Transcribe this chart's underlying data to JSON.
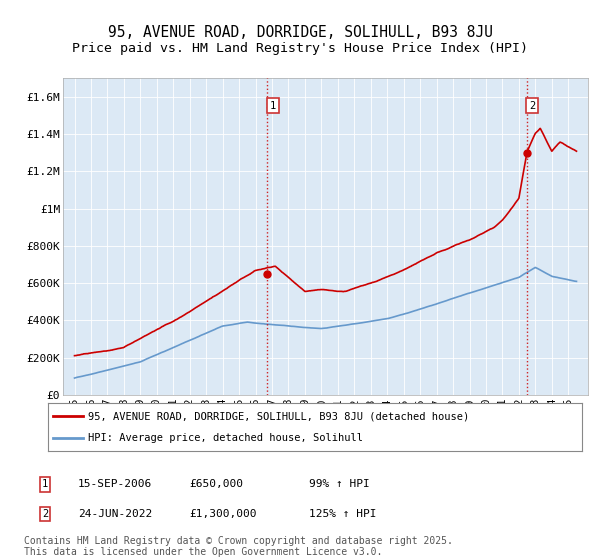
{
  "title": "95, AVENUE ROAD, DORRIDGE, SOLIHULL, B93 8JU",
  "subtitle": "Price paid vs. HM Land Registry's House Price Index (HPI)",
  "ylim": [
    0,
    1700000
  ],
  "yticks": [
    0,
    200000,
    400000,
    600000,
    800000,
    1000000,
    1200000,
    1400000,
    1600000
  ],
  "ytick_labels": [
    "£0",
    "£200K",
    "£400K",
    "£600K",
    "£800K",
    "£1M",
    "£1.2M",
    "£1.4M",
    "£1.6M"
  ],
  "sale1_date": "15-SEP-2006",
  "sale1_price": 650000,
  "sale1_label": "1",
  "sale1_x": 2006.71,
  "sale2_date": "24-JUN-2022",
  "sale2_price": 1300000,
  "sale2_label": "2",
  "sale2_x": 2022.47,
  "legend_line1": "95, AVENUE ROAD, DORRIDGE, SOLIHULL, B93 8JU (detached house)",
  "legend_line2": "HPI: Average price, detached house, Solihull",
  "footer": "Contains HM Land Registry data © Crown copyright and database right 2025.\nThis data is licensed under the Open Government Licence v3.0.",
  "red_color": "#cc0000",
  "blue_color": "#6699cc",
  "plot_bg_color": "#dce9f5",
  "background_color": "#ffffff",
  "grid_color": "#ffffff",
  "title_fontsize": 10.5,
  "subtitle_fontsize": 9.5,
  "axis_fontsize": 8,
  "footer_fontsize": 7
}
